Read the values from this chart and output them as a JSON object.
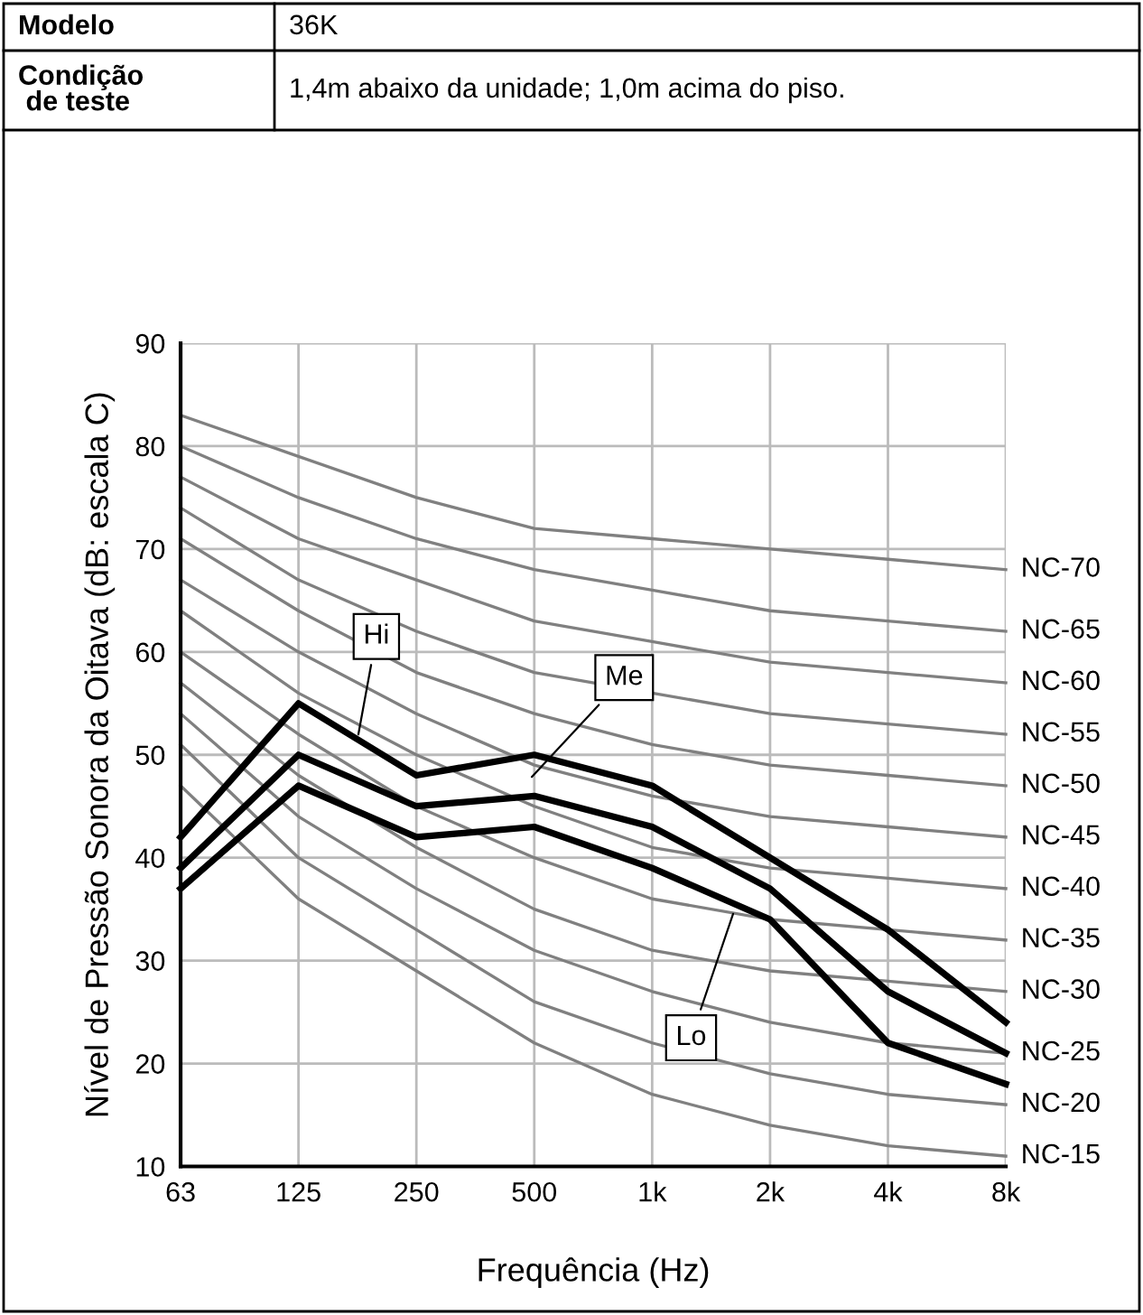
{
  "chart_data": {
    "type": "line",
    "xlabel": "Frequência (Hz)",
    "ylabel": "Nível de Pressão Sonora da Oitava (dB: escala C)",
    "annotations": [
      "Modelo",
      "36K",
      "Condição\n de teste",
      "1,4m abaixo da unidade; 1,0m acima do piso."
    ],
    "categories": [
      "63",
      "125",
      "250",
      "500",
      "1k",
      "2k",
      "4k",
      "8k"
    ],
    "ylim": [
      10,
      90
    ],
    "yticks": [
      10,
      20,
      30,
      40,
      50,
      60,
      70,
      80,
      90
    ],
    "grid": true,
    "legend": false,
    "marker": "none",
    "line_style": "solid",
    "series": [
      {
        "name": "NC-70",
        "color": "#808080",
        "values": [
          83,
          79,
          75,
          72,
          71,
          70,
          69,
          68
        ]
      },
      {
        "name": "NC-65",
        "color": "#808080",
        "values": [
          80,
          75,
          71,
          68,
          66,
          64,
          63,
          62
        ]
      },
      {
        "name": "NC-60",
        "color": "#808080",
        "values": [
          77,
          71,
          67,
          63,
          61,
          59,
          58,
          57
        ]
      },
      {
        "name": "NC-55",
        "color": "#808080",
        "values": [
          74,
          67,
          62,
          58,
          56,
          54,
          53,
          52
        ]
      },
      {
        "name": "NC-50",
        "color": "#808080",
        "values": [
          71,
          64,
          58,
          54,
          51,
          49,
          48,
          47
        ]
      },
      {
        "name": "NC-45",
        "color": "#808080",
        "values": [
          67,
          60,
          54,
          49,
          46,
          44,
          43,
          42
        ]
      },
      {
        "name": "NC-40",
        "color": "#808080",
        "values": [
          64,
          56,
          50,
          45,
          41,
          39,
          38,
          37
        ]
      },
      {
        "name": "NC-35",
        "color": "#808080",
        "values": [
          60,
          52,
          45,
          40,
          36,
          34,
          33,
          32
        ]
      },
      {
        "name": "NC-30",
        "color": "#808080",
        "values": [
          57,
          48,
          41,
          35,
          31,
          29,
          28,
          27
        ]
      },
      {
        "name": "NC-25",
        "color": "#808080",
        "values": [
          54,
          44,
          37,
          31,
          27,
          24,
          22,
          21
        ]
      },
      {
        "name": "NC-20",
        "color": "#808080",
        "values": [
          51,
          40,
          33,
          26,
          22,
          19,
          17,
          16
        ]
      },
      {
        "name": "NC-15",
        "color": "#808080",
        "values": [
          47,
          36,
          29,
          22,
          17,
          14,
          12,
          11
        ]
      },
      {
        "name": "Hi",
        "color": "#000000",
        "values": [
          42,
          55,
          48,
          50,
          47,
          40,
          33,
          24
        ]
      },
      {
        "name": "Me",
        "color": "#000000",
        "values": [
          39,
          50,
          45,
          46,
          43,
          37,
          27,
          21
        ]
      },
      {
        "name": "Lo",
        "color": "#000000",
        "values": [
          37,
          47,
          42,
          43,
          39,
          34,
          22,
          18
        ]
      }
    ]
  }
}
